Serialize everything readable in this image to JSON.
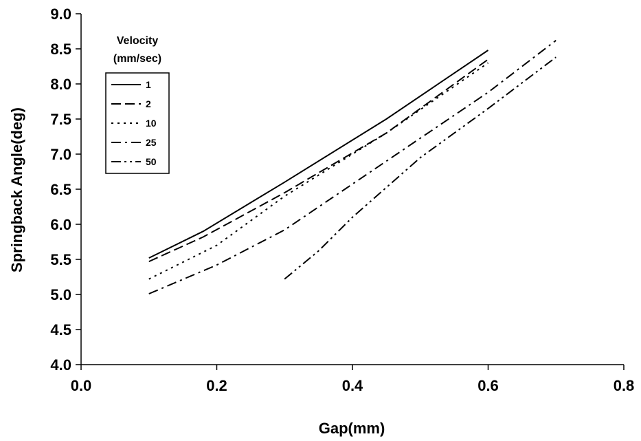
{
  "chart_data": {
    "type": "line",
    "title": "",
    "xlabel": "Gap(mm)",
    "ylabel": "Springback Angle(deg)",
    "xlim": [
      0.0,
      0.8
    ],
    "ylim": [
      4.0,
      9.0
    ],
    "x_ticks": [
      "0.0",
      "0.2",
      "0.4",
      "0.6",
      "0.8"
    ],
    "y_ticks": [
      "4.0",
      "4.5",
      "5.0",
      "5.5",
      "6.0",
      "6.5",
      "7.0",
      "7.5",
      "8.0",
      "8.5",
      "9.0"
    ],
    "grid": false,
    "legend": {
      "title_lines": [
        "Velocity",
        "(mm/sec)"
      ],
      "placement": "top-left"
    },
    "series": [
      {
        "name": "1",
        "dash": "solid",
        "x": [
          0.1,
          0.18,
          0.3,
          0.45,
          0.6
        ],
        "y": [
          5.52,
          5.9,
          6.6,
          7.5,
          8.48
        ]
      },
      {
        "name": "2",
        "dash": "long-dash",
        "x": [
          0.1,
          0.18,
          0.3,
          0.45,
          0.6
        ],
        "y": [
          5.47,
          5.82,
          6.45,
          7.3,
          8.35
        ]
      },
      {
        "name": "10",
        "dash": "dotted",
        "x": [
          0.1,
          0.2,
          0.3,
          0.45,
          0.6
        ],
        "y": [
          5.22,
          5.7,
          6.4,
          7.3,
          8.3
        ]
      },
      {
        "name": "25",
        "dash": "dash-dot",
        "x": [
          0.1,
          0.2,
          0.3,
          0.45,
          0.6,
          0.7
        ],
        "y": [
          5.01,
          5.42,
          5.92,
          6.9,
          7.88,
          8.62
        ]
      },
      {
        "name": "50",
        "dash": "dash-dot-dot",
        "x": [
          0.3,
          0.35,
          0.4,
          0.5,
          0.6,
          0.7
        ],
        "y": [
          5.22,
          5.62,
          6.1,
          6.95,
          7.65,
          8.38
        ]
      }
    ]
  }
}
